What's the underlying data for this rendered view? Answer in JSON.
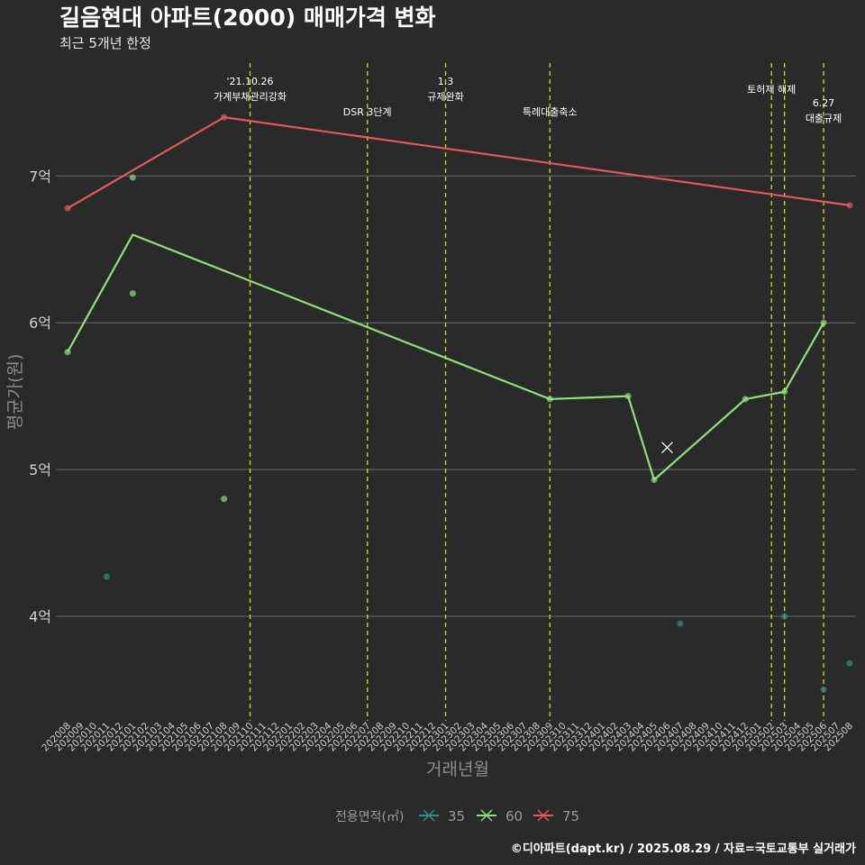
{
  "chart_data": {
    "type": "line",
    "title": "길음현대 아파트(2000) 매매가격 변화",
    "subtitle": "최근 5개년 한정",
    "xlabel": "거래년월",
    "ylabel": "평균가(원)",
    "caption": "©디아파트(dapt.kr) / 2025.08.29 / 자료=국토교통부 실거래가",
    "ylim": [
      3.3,
      7.8
    ],
    "yticks": [
      4,
      5,
      6,
      7
    ],
    "ytick_labels": [
      "4억",
      "5억",
      "6억",
      "7억"
    ],
    "months": [
      "202008",
      "202009",
      "202010",
      "202011",
      "202012",
      "202101",
      "202102",
      "202103",
      "202104",
      "202105",
      "202106",
      "202107",
      "202108",
      "202109",
      "202110",
      "202111",
      "202112",
      "202201",
      "202202",
      "202203",
      "202204",
      "202205",
      "202206",
      "202207",
      "202208",
      "202209",
      "202210",
      "202211",
      "202212",
      "202301",
      "202302",
      "202303",
      "202304",
      "202305",
      "202306",
      "202307",
      "202308",
      "202309",
      "202310",
      "202311",
      "202312",
      "202401",
      "202402",
      "202403",
      "202404",
      "202405",
      "202406",
      "202407",
      "202408",
      "202409",
      "202410",
      "202411",
      "202412",
      "202501",
      "202502",
      "202503",
      "202504",
      "202505",
      "202506",
      "202507",
      "202508"
    ],
    "legend": {
      "title": "전용면적(㎡)",
      "items": [
        {
          "label": "35",
          "color": "#2e8f87"
        },
        {
          "label": "60",
          "color": "#8fe07a"
        },
        {
          "label": "75",
          "color": "#e05a5a"
        }
      ]
    },
    "series": [
      {
        "name": "75",
        "color": "#e05a5a",
        "line": [
          [
            "202008",
            6.78
          ],
          [
            "202108",
            7.4
          ],
          [
            "202508",
            6.8
          ]
        ],
        "points": [
          [
            "202008",
            6.78
          ],
          [
            "202108",
            7.4
          ],
          [
            "202508",
            6.8
          ]
        ]
      },
      {
        "name": "60",
        "color": "#8fe07a",
        "line": [
          [
            "202008",
            5.8
          ],
          [
            "202101",
            6.6
          ],
          [
            "202309",
            5.48
          ],
          [
            "202403",
            5.5
          ],
          [
            "202405",
            4.93
          ],
          [
            "202412",
            5.48
          ],
          [
            "202503",
            5.53
          ],
          [
            "202506",
            6.0
          ]
        ],
        "points": [
          [
            "202008",
            5.8
          ],
          [
            "202101",
            6.2
          ],
          [
            "202101",
            6.99
          ],
          [
            "202108",
            4.8
          ],
          [
            "202309",
            5.48
          ],
          [
            "202403",
            5.5
          ],
          [
            "202405",
            4.93
          ],
          [
            "202412",
            5.48
          ],
          [
            "202503",
            5.53
          ],
          [
            "202506",
            6.0
          ]
        ]
      },
      {
        "name": "35",
        "color": "#2e8f87",
        "line": [],
        "points": [
          [
            "202011",
            4.27
          ],
          [
            "202407",
            3.95
          ],
          [
            "202503",
            4.0
          ],
          [
            "202506",
            3.5
          ],
          [
            "202508",
            3.68
          ]
        ]
      }
    ],
    "cross_marker": {
      "month": "202406",
      "value": 5.15
    },
    "events": [
      {
        "month": "202110",
        "lines": [
          "'21.10.26",
          "가계부채관리강화"
        ],
        "level": 1
      },
      {
        "month": "202207",
        "lines": [
          "DSR 3단계"
        ],
        "level": 2
      },
      {
        "month": "202301",
        "lines": [
          "1.3",
          "규제완화"
        ],
        "level": 1
      },
      {
        "month": "202309",
        "lines": [
          "특례대출축소"
        ],
        "level": 2
      },
      {
        "month": "202502",
        "lines": [
          "토허제 해제"
        ],
        "level": 0
      },
      {
        "month": "202503",
        "lines": [],
        "level": 0
      },
      {
        "month": "202506",
        "lines": [
          "6.27",
          "대출규제"
        ],
        "level": 3
      }
    ]
  }
}
